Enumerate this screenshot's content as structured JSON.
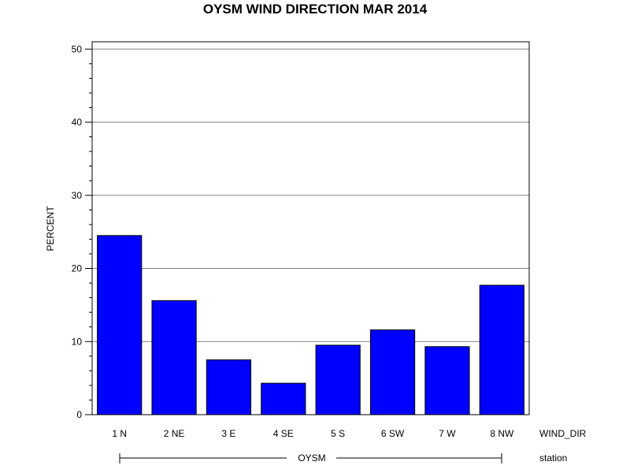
{
  "chart_data": {
    "type": "bar",
    "title": "OYSM WIND DIRECTION MAR 2014",
    "ylabel": "PERCENT",
    "xlabel": "WIND_DIR",
    "group_label": "station",
    "group_name": "OYSM",
    "categories": [
      "1 N",
      "2 NE",
      "3 E",
      "4 SE",
      "5 S",
      "6 SW",
      "7 W",
      "8 NW"
    ],
    "values": [
      24.5,
      15.6,
      7.5,
      4.3,
      9.5,
      11.6,
      9.3,
      17.7
    ],
    "ylim": [
      0,
      51
    ],
    "yticks": [
      "0",
      "10",
      "20",
      "30",
      "40",
      "50"
    ],
    "grid": true,
    "colors": {
      "bar": "#0000ff",
      "bar_edge": "#000000",
      "grid": "#808080"
    }
  }
}
